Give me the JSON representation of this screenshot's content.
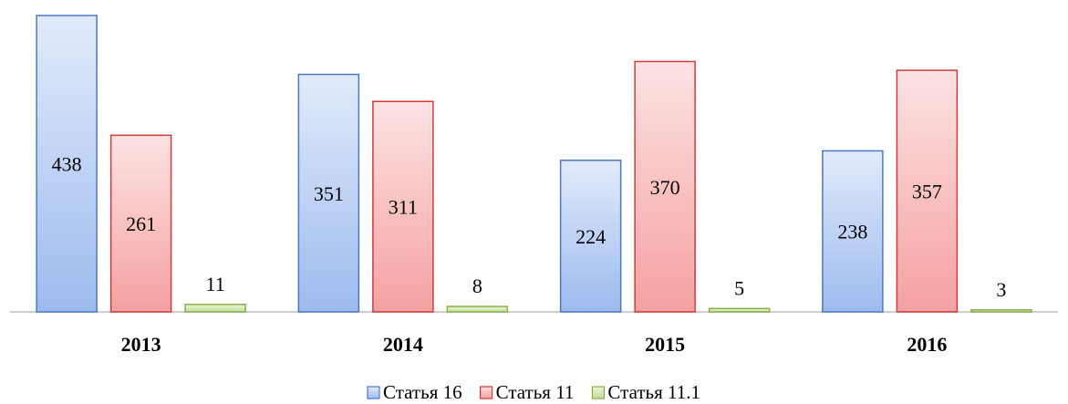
{
  "chart_data": {
    "type": "bar",
    "categories": [
      "2013",
      "2014",
      "2015",
      "2016"
    ],
    "series": [
      {
        "name": "Статья 16",
        "color": "#9dbbee",
        "border": "#4a7ac6",
        "values": [
          438,
          351,
          224,
          238
        ]
      },
      {
        "name": "Статья 11",
        "color": "#f4a1a1",
        "border": "#d03b3b",
        "values": [
          261,
          311,
          370,
          357
        ]
      },
      {
        "name": "Статья 11.1",
        "color": "#c0de95",
        "border": "#86b04a",
        "values": [
          11,
          8,
          5,
          3
        ]
      }
    ],
    "legend": "bottom"
  }
}
